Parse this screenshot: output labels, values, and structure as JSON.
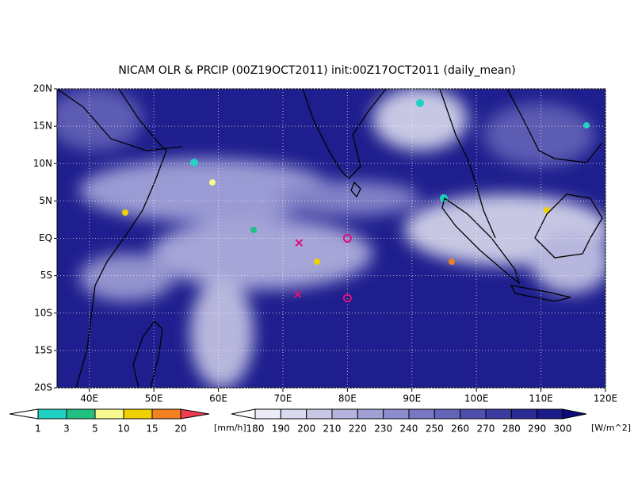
{
  "title": "NICAM OLR & PRCIP (00Z19OCT2011) init:00Z17OCT2011 (daily_mean)",
  "map": {
    "lon_range": [
      35,
      120
    ],
    "lat_range": [
      -20,
      20
    ],
    "lon_ticks": [
      {
        "value": 40,
        "label": "40E"
      },
      {
        "value": 50,
        "label": "50E"
      },
      {
        "value": 60,
        "label": "60E"
      },
      {
        "value": 70,
        "label": "70E"
      },
      {
        "value": 80,
        "label": "80E"
      },
      {
        "value": 90,
        "label": "90E"
      },
      {
        "value": 100,
        "label": "100E"
      },
      {
        "value": 110,
        "label": "110E"
      },
      {
        "value": 120,
        "label": "120E"
      }
    ],
    "lat_ticks": [
      {
        "value": 20,
        "label": "20N"
      },
      {
        "value": 15,
        "label": "15N"
      },
      {
        "value": 10,
        "label": "10N"
      },
      {
        "value": 5,
        "label": "5N"
      },
      {
        "value": 0,
        "label": "EQ"
      },
      {
        "value": -5,
        "label": "5S"
      },
      {
        "value": -10,
        "label": "10S"
      },
      {
        "value": -15,
        "label": "15S"
      },
      {
        "value": -20,
        "label": "20S"
      }
    ],
    "grid": true,
    "markers": [
      {
        "symbol": "x",
        "lon": 72.5,
        "lat": -0.6,
        "color": "#e0107a"
      },
      {
        "symbol": "x",
        "lon": 72.3,
        "lat": -7.5,
        "color": "#e0107a"
      },
      {
        "symbol": "o",
        "lon": 80,
        "lat": 0,
        "color": "#e0107a"
      },
      {
        "symbol": "o",
        "lon": 80,
        "lat": -8,
        "color": "#e0107a"
      }
    ]
  },
  "legends": [
    {
      "unit": "[mm/h]",
      "levels": [
        1,
        3,
        5,
        10,
        15,
        20
      ],
      "colors": [
        "#ffffff",
        "#20d0c0",
        "#20c080",
        "#f8f890",
        "#f0d000",
        "#f08020",
        "#f03c50"
      ]
    },
    {
      "unit": "[W/m^2]",
      "levels": [
        180,
        190,
        200,
        210,
        220,
        230,
        240,
        250,
        260,
        270,
        280,
        290,
        300
      ],
      "colors": [
        "#ffffff",
        "#ececf6",
        "#dadaee",
        "#c8c8e6",
        "#b4b4de",
        "#a0a0d6",
        "#8c8cce",
        "#7878c4",
        "#6464b8",
        "#5050ac",
        "#3c3ca0",
        "#2a2a94",
        "#1a1a88",
        "#0c0c7a"
      ]
    }
  ]
}
